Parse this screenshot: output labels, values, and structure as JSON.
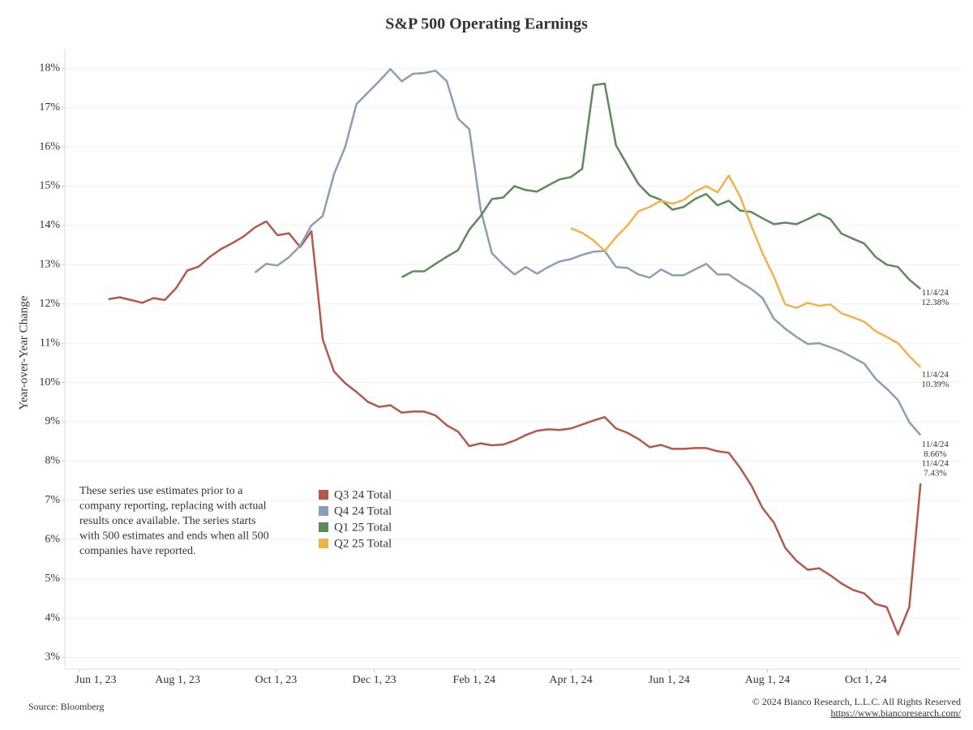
{
  "chart_data": {
    "type": "line",
    "title": "S&P 500 Operating Earnings",
    "y_label": "Year-over-Year Change",
    "note": [
      "These series use estimates prior to a",
      "company reporting, replacing with actual",
      "results once available. The series starts",
      "with 500 estimates and ends when all 500",
      "companies have reported."
    ],
    "source": "Source: Bloomberg",
    "copyright": "© 2024 Bianco Research, L.L.C. All Rights Reserved",
    "url": "https://www.biancoresearch.com/",
    "x": [
      "2023-06-19",
      "2023-06-26",
      "2023-07-03",
      "2023-07-10",
      "2023-07-17",
      "2023-07-24",
      "2023-07-31",
      "2023-08-07",
      "2023-08-14",
      "2023-08-21",
      "2023-08-28",
      "2023-09-04",
      "2023-09-11",
      "2023-09-18",
      "2023-09-25",
      "2023-10-02",
      "2023-10-09",
      "2023-10-16",
      "2023-10-23",
      "2023-10-30",
      "2023-11-06",
      "2023-11-13",
      "2023-11-20",
      "2023-11-27",
      "2023-12-04",
      "2023-12-11",
      "2023-12-18",
      "2023-12-25",
      "2024-01-01",
      "2024-01-08",
      "2024-01-15",
      "2024-01-22",
      "2024-01-29",
      "2024-02-05",
      "2024-02-12",
      "2024-02-19",
      "2024-02-26",
      "2024-03-04",
      "2024-03-11",
      "2024-03-18",
      "2024-03-25",
      "2024-04-01",
      "2024-04-08",
      "2024-04-15",
      "2024-04-22",
      "2024-04-29",
      "2024-05-06",
      "2024-05-13",
      "2024-05-20",
      "2024-05-27",
      "2024-06-03",
      "2024-06-10",
      "2024-06-17",
      "2024-06-24",
      "2024-07-01",
      "2024-07-08",
      "2024-07-15",
      "2024-07-22",
      "2024-07-29",
      "2024-08-05",
      "2024-08-12",
      "2024-08-19",
      "2024-08-26",
      "2024-09-02",
      "2024-09-09",
      "2024-09-16",
      "2024-09-23",
      "2024-09-30",
      "2024-10-07",
      "2024-10-14",
      "2024-10-21",
      "2024-10-28",
      "2024-11-04"
    ],
    "xlim": [
      "2023-05-23",
      "2024-11-29"
    ],
    "xticks": [
      {
        "value": "2023-06-01",
        "label": "Jun 1, 23"
      },
      {
        "value": "2023-08-01",
        "label": "Aug 1, 23"
      },
      {
        "value": "2023-10-01",
        "label": "Oct 1, 23"
      },
      {
        "value": "2023-12-01",
        "label": "Dec 1, 23"
      },
      {
        "value": "2024-02-01",
        "label": "Feb 1, 24"
      },
      {
        "value": "2024-04-01",
        "label": "Apr 1, 24"
      },
      {
        "value": "2024-06-01",
        "label": "Jun 1, 24"
      },
      {
        "value": "2024-08-01",
        "label": "Aug 1, 24"
      },
      {
        "value": "2024-10-01",
        "label": "Oct 1, 24"
      }
    ],
    "ylim": [
      2.7,
      18.5
    ],
    "yticks": [
      {
        "value": 3,
        "label": "3%"
      },
      {
        "value": 4,
        "label": "4%"
      },
      {
        "value": 5,
        "label": "5%"
      },
      {
        "value": 6,
        "label": "6%"
      },
      {
        "value": 7,
        "label": "7%"
      },
      {
        "value": 8,
        "label": "8%"
      },
      {
        "value": 9,
        "label": "9%"
      },
      {
        "value": 10,
        "label": "10%"
      },
      {
        "value": 11,
        "label": "11%"
      },
      {
        "value": 12,
        "label": "12%"
      },
      {
        "value": 13,
        "label": "13%"
      },
      {
        "value": 14,
        "label": "14%"
      },
      {
        "value": 15,
        "label": "15%"
      },
      {
        "value": 16,
        "label": "16%"
      },
      {
        "value": 17,
        "label": "17%"
      },
      {
        "value": 18,
        "label": "18%"
      }
    ],
    "grid": true,
    "series": [
      {
        "name": "Q3 24 Total",
        "color": "#b5584a",
        "end_label": {
          "date": "11/4/24",
          "value": "7.43%"
        },
        "values": [
          12.12,
          12.17,
          12.1,
          12.03,
          12.15,
          12.1,
          12.4,
          12.85,
          12.95,
          13.2,
          13.4,
          13.55,
          13.72,
          13.95,
          14.1,
          13.75,
          13.8,
          13.45,
          13.85,
          11.1,
          10.28,
          9.98,
          9.76,
          9.51,
          9.38,
          9.42,
          9.23,
          9.26,
          9.26,
          9.16,
          8.91,
          8.75,
          8.38,
          8.45,
          8.4,
          8.42,
          8.52,
          8.66,
          8.77,
          8.81,
          8.79,
          8.83,
          8.93,
          9.03,
          9.12,
          8.83,
          8.72,
          8.56,
          8.35,
          8.41,
          8.31,
          8.31,
          8.33,
          8.33,
          8.25,
          8.21,
          7.83,
          7.38,
          6.8,
          6.43,
          5.79,
          5.46,
          5.23,
          5.27,
          5.09,
          4.88,
          4.72,
          4.63,
          4.36,
          4.28,
          3.58,
          4.28,
          7.43
        ]
      },
      {
        "name": "Q4 24 Total",
        "color": "#8a9fb5",
        "end_label": {
          "date": "11/4/24",
          "value": "8.66%"
        },
        "values": [
          null,
          null,
          null,
          null,
          null,
          null,
          null,
          null,
          null,
          null,
          null,
          null,
          null,
          12.8,
          13.02,
          12.98,
          13.19,
          13.48,
          14.0,
          14.24,
          15.3,
          16.0,
          17.09,
          17.38,
          17.67,
          17.98,
          17.67,
          17.86,
          17.88,
          17.94,
          17.67,
          16.72,
          16.45,
          14.4,
          13.29,
          13.0,
          12.75,
          12.94,
          12.77,
          12.94,
          13.08,
          13.14,
          13.25,
          13.33,
          13.35,
          12.94,
          12.92,
          12.75,
          12.67,
          12.88,
          12.73,
          12.73,
          12.88,
          13.02,
          12.75,
          12.75,
          12.55,
          12.38,
          12.15,
          11.62,
          11.37,
          11.16,
          10.98,
          11.0,
          10.9,
          10.79,
          10.64,
          10.48,
          10.1,
          9.84,
          9.55,
          8.99,
          8.66
        ]
      },
      {
        "name": "Q1 25 Total",
        "color": "#5e8a5a",
        "end_label": {
          "date": "11/4/24",
          "value": "12.38%"
        },
        "values": [
          null,
          null,
          null,
          null,
          null,
          null,
          null,
          null,
          null,
          null,
          null,
          null,
          null,
          null,
          null,
          null,
          null,
          null,
          null,
          null,
          null,
          null,
          null,
          null,
          null,
          null,
          12.68,
          12.83,
          12.83,
          13.02,
          13.2,
          13.37,
          13.89,
          14.24,
          14.67,
          14.71,
          15.0,
          14.9,
          14.86,
          15.02,
          15.17,
          15.23,
          15.44,
          17.57,
          17.61,
          16.04,
          15.54,
          15.05,
          14.76,
          14.65,
          14.4,
          14.47,
          14.67,
          14.8,
          14.51,
          14.63,
          14.38,
          14.34,
          14.18,
          14.03,
          14.07,
          14.03,
          14.16,
          14.3,
          14.16,
          13.79,
          13.66,
          13.54,
          13.2,
          13.0,
          12.94,
          12.62,
          12.38
        ]
      },
      {
        "name": "Q2 25 Total",
        "color": "#f2b24a",
        "end_label": {
          "date": "11/4/24",
          "value": "10.39%"
        },
        "values": [
          null,
          null,
          null,
          null,
          null,
          null,
          null,
          null,
          null,
          null,
          null,
          null,
          null,
          null,
          null,
          null,
          null,
          null,
          null,
          null,
          null,
          null,
          null,
          null,
          null,
          null,
          null,
          null,
          null,
          null,
          null,
          null,
          null,
          null,
          null,
          null,
          null,
          null,
          null,
          null,
          null,
          13.93,
          13.81,
          13.62,
          13.35,
          13.7,
          13.99,
          14.36,
          14.47,
          14.63,
          14.55,
          14.65,
          14.86,
          15.0,
          14.84,
          15.27,
          14.74,
          13.99,
          13.29,
          12.69,
          11.99,
          11.9,
          12.03,
          11.95,
          11.99,
          11.76,
          11.66,
          11.55,
          11.31,
          11.16,
          11.0,
          10.67,
          10.39
        ]
      }
    ]
  }
}
